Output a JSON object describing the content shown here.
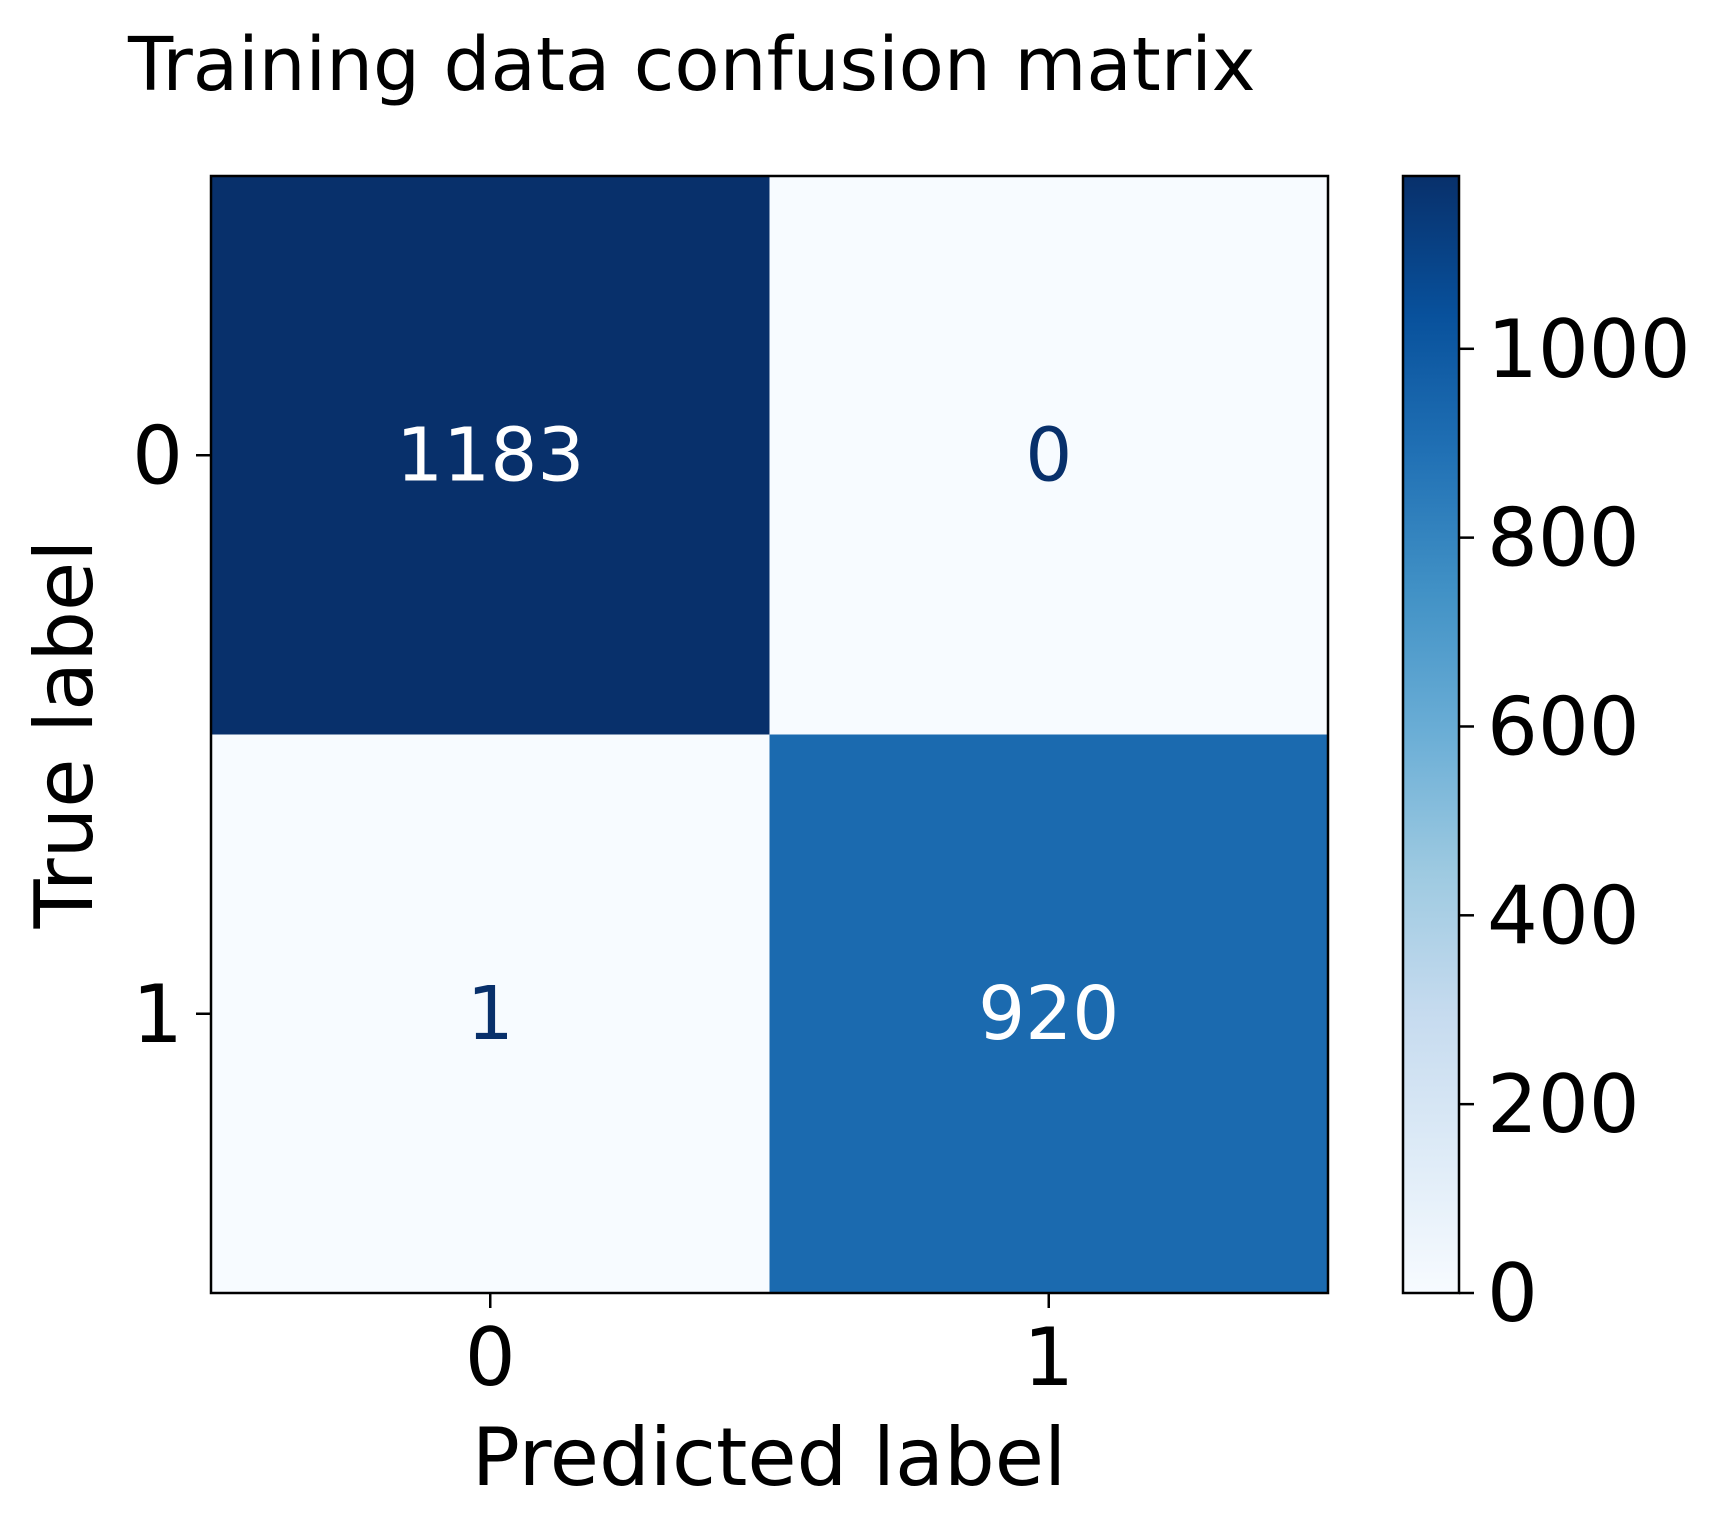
{
  "chart_data": {
    "type": "heatmap",
    "title": "Training data confusion matrix",
    "xlabel": "Predicted label",
    "ylabel": "True label",
    "x_categories": [
      "0",
      "1"
    ],
    "y_categories": [
      "0",
      "1"
    ],
    "matrix": [
      [
        1183,
        0
      ],
      [
        1,
        920
      ]
    ],
    "colormap": "Blues",
    "color_range": [
      0,
      1183
    ],
    "colorbar": {
      "ticks": [
        0,
        200,
        400,
        600,
        800,
        1000
      ],
      "tick_labels": [
        "0",
        "200",
        "400",
        "600",
        "800",
        "1000"
      ]
    },
    "grid": false,
    "legend": "colorbar right"
  }
}
